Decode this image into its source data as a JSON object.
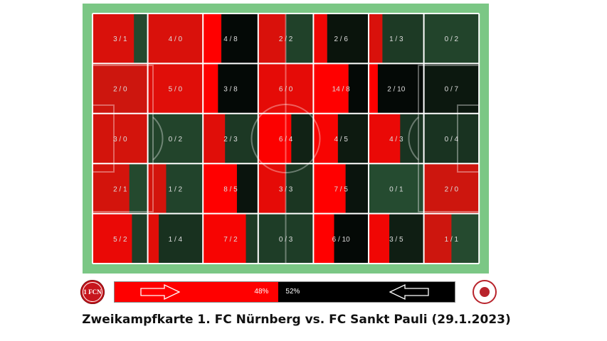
{
  "caption": "Zweikampfkarte 1. FC Nürnberg vs. FC Sankt Pauli (29.1.2023)",
  "home_team": {
    "logo_text": "1 FCN",
    "color": "#ff0000",
    "share_pct": 48,
    "share_label": "48%"
  },
  "away_team": {
    "logo_text": "FC St. Pauli 1910",
    "color": "#000000",
    "share_pct": 52,
    "share_label": "52%"
  },
  "colors": {
    "pitch_green": "#7bc785",
    "cell_green": "#2f5e3c",
    "home": "#ff0000",
    "away": "#000000",
    "lines": "#ffffff",
    "cell_text": "#dddddd"
  },
  "chart_data": {
    "type": "heatmap",
    "title": "",
    "rows": 5,
    "cols": 7,
    "encoding": "home duels won / away duels won per pitch zone",
    "cells": [
      [
        [
          3,
          1
        ],
        [
          4,
          0
        ],
        [
          4,
          8
        ],
        [
          2,
          2
        ],
        [
          2,
          6
        ],
        [
          1,
          3
        ],
        [
          0,
          2
        ]
      ],
      [
        [
          2,
          0
        ],
        [
          5,
          0
        ],
        [
          3,
          8
        ],
        [
          6,
          0
        ],
        [
          14,
          8
        ],
        [
          2,
          10
        ],
        [
          0,
          7
        ]
      ],
      [
        [
          3,
          0
        ],
        [
          0,
          2
        ],
        [
          2,
          3
        ],
        [
          6,
          4
        ],
        [
          4,
          5
        ],
        [
          4,
          3
        ],
        [
          0,
          4
        ]
      ],
      [
        [
          2,
          1
        ],
        [
          1,
          2
        ],
        [
          8,
          5
        ],
        [
          3,
          3
        ],
        [
          7,
          5
        ],
        [
          0,
          1
        ],
        [
          2,
          0
        ]
      ],
      [
        [
          5,
          2
        ],
        [
          1,
          4
        ],
        [
          7,
          2
        ],
        [
          0,
          3
        ],
        [
          6,
          10
        ],
        [
          3,
          5
        ],
        [
          1,
          1
        ]
      ]
    ],
    "labels": [
      [
        "3 / 1",
        "4 / 0",
        "4 / 8",
        "2 / 2",
        "2 / 6",
        "1 / 3",
        "0 / 2"
      ],
      [
        "2 / 0",
        "5 / 0",
        "3 / 8",
        "6 / 0",
        "14 / 8",
        "2 / 10",
        "0 / 7"
      ],
      [
        "3 / 0",
        "0 / 2",
        "2 / 3",
        "6 / 4",
        "4 / 5",
        "4 / 3",
        "0 / 4"
      ],
      [
        "2 / 1",
        "1 / 2",
        "8 / 5",
        "3 / 3",
        "7 / 5",
        "0 / 1",
        "2 / 0"
      ],
      [
        "5 / 2",
        "1 / 4",
        "7 / 2",
        "0 / 3",
        "6 / 10",
        "3 / 5",
        "1 / 1"
      ]
    ]
  }
}
